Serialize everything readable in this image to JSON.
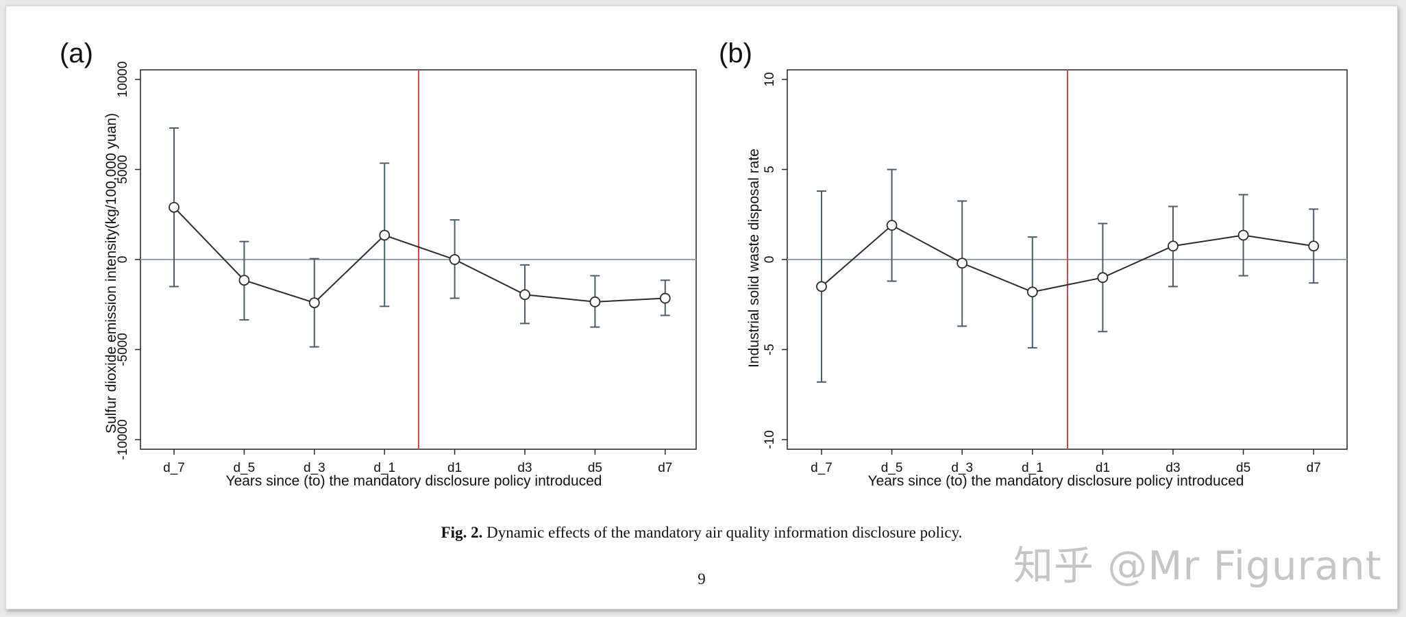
{
  "chart_data": [
    {
      "type": "line",
      "panel_label": "(a)",
      "xlabel": "Years since (to) the mandatory disclosure policy introduced",
      "ylabel": "Sulfur dioxide emission intensity(kg/100,000 yuan)",
      "categories": [
        "d_7",
        "d_5",
        "d_3",
        "d_1",
        "d1",
        "d3",
        "d5",
        "d7"
      ],
      "values": [
        2900,
        -1150,
        -2400,
        1350,
        0,
        -1950,
        -2350,
        -2150
      ],
      "ci_lower": [
        -1500,
        -3350,
        -4850,
        -2600,
        -2150,
        -3550,
        -3750,
        -3100
      ],
      "ci_upper": [
        7300,
        1000,
        50,
        5350,
        2200,
        -300,
        -900,
        -1150
      ],
      "ylim": [
        -10000,
        10000
      ],
      "yticks": [
        10000,
        5000,
        0,
        -5000,
        -10000
      ],
      "ytick_labels": [
        "10000",
        "5000",
        "0",
        "-5000",
        "-10000"
      ],
      "reference_line_y": 0,
      "policy_line_between": [
        "d_1",
        "d1"
      ],
      "colors": {
        "series": "#2b2b2b",
        "errorbar": "#4a5e66",
        "zero_line": "#8fa3ad",
        "policy_line": "#d94545"
      }
    },
    {
      "type": "line",
      "panel_label": "(b)",
      "xlabel": "Years since (to) the mandatory disclosure policy introduced",
      "ylabel": "Industrial solid waste disposal rate",
      "categories": [
        "d_7",
        "d_5",
        "d_3",
        "d_1",
        "d1",
        "d3",
        "d5",
        "d7"
      ],
      "values": [
        -1.5,
        1.9,
        -0.2,
        -1.8,
        -1.0,
        0.75,
        1.35,
        0.75
      ],
      "ci_lower": [
        -6.8,
        -1.2,
        -3.7,
        -4.9,
        -4.0,
        -1.5,
        -0.9,
        -1.3
      ],
      "ci_upper": [
        3.8,
        5.0,
        3.25,
        1.25,
        2.0,
        2.95,
        3.6,
        2.8
      ],
      "ylim": [
        -10,
        10
      ],
      "yticks": [
        10,
        5,
        0,
        -5,
        -10
      ],
      "ytick_labels": [
        "10",
        "5",
        "0",
        "-5",
        "-10"
      ],
      "reference_line_y": 0,
      "policy_line_between": [
        "d_1",
        "d1"
      ],
      "colors": {
        "series": "#2b2b2b",
        "errorbar": "#4a5e66",
        "zero_line": "#8fa3ad",
        "policy_line": "#d94545"
      }
    }
  ],
  "caption": {
    "label": "Fig. 2.",
    "text": " Dynamic effects of the mandatory air quality information disclosure policy."
  },
  "page_number": "9",
  "watermark": "知乎 @Mr Figurant"
}
